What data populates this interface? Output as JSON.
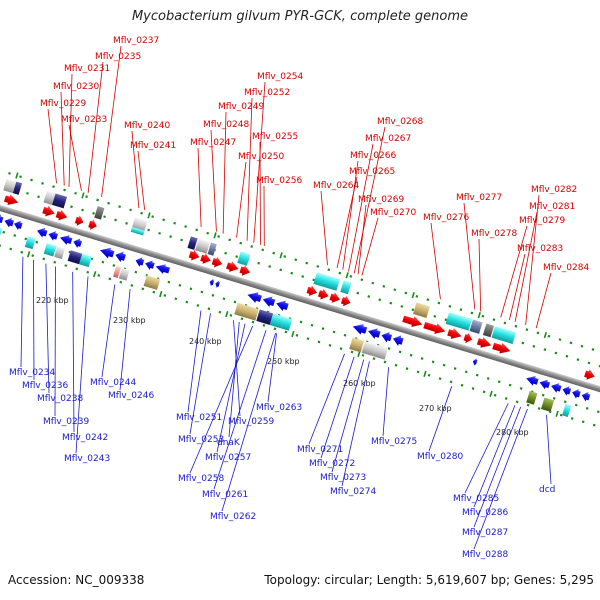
{
  "title": "Mycobacterium gilvum PYR-GCK, complete genome",
  "footer": {
    "accession": "Accession: NC_009338",
    "summary": "Topology: circular; Length: 5,619,607 bp; Genes: 5,295"
  },
  "colors": {
    "forward_cds": "#ee0000",
    "reverse_cds": "#1010ee",
    "backbone": "#888888",
    "tick": "#1a8a1a",
    "label_top": "#d40000",
    "label_bottom": "#1a1acc",
    "feature_cyan": "#22dddd",
    "feature_navy": "#22227a",
    "feature_khaki": "#c8b070",
    "feature_gray": "#c8c8c8"
  },
  "scale_labels": [
    "220 kbp",
    "230 kbp",
    "240 kbp",
    "250 kbp",
    "260 kbp",
    "270 kbp",
    "280 kbp"
  ],
  "top_labels": [
    "Mflv_0237",
    "Mflv_0235",
    "Mflv_0231",
    "Mflv_0230",
    "Mflv_0229",
    "Mflv_0233",
    "Mflv_0240",
    "Mflv_0241",
    "Mflv_0254",
    "Mflv_0252",
    "Mflv_0249",
    "Mflv_0248",
    "Mflv_0247",
    "Mflv_0255",
    "Mflv_0250",
    "Mflv_0256",
    "Mflv_0268",
    "Mflv_0267",
    "Mflv_0266",
    "Mflv_0265",
    "Mflv_0264",
    "Mflv_0269",
    "Mflv_0270",
    "Mflv_0277",
    "Mflv_0276",
    "Mflv_0282",
    "Mflv_0281",
    "Mflv_0279",
    "Mflv_0278",
    "Mflv_0283",
    "Mflv_0284"
  ],
  "bottom_labels": [
    "Mflv_0234",
    "Mflv_0236",
    "Mflv_0238",
    "Mflv_0239",
    "Mflv_0242",
    "Mflv_0243",
    "Mflv_0244",
    "Mflv_0246",
    "Mflv_0251",
    "Mflv_0253",
    "Mflv_0259",
    "dnaK",
    "Mflv_0257",
    "Mflv_0258",
    "Mflv_0261",
    "Mflv_0262",
    "Mflv_0263",
    "Mflv_0271",
    "Mflv_0272",
    "Mflv_0273",
    "Mflv_0274",
    "Mflv_0275",
    "Mflv_0280",
    "Mflv_0285",
    "Mflv_0286",
    "Mflv_0287",
    "Mflv_0288",
    "dcd"
  ]
}
